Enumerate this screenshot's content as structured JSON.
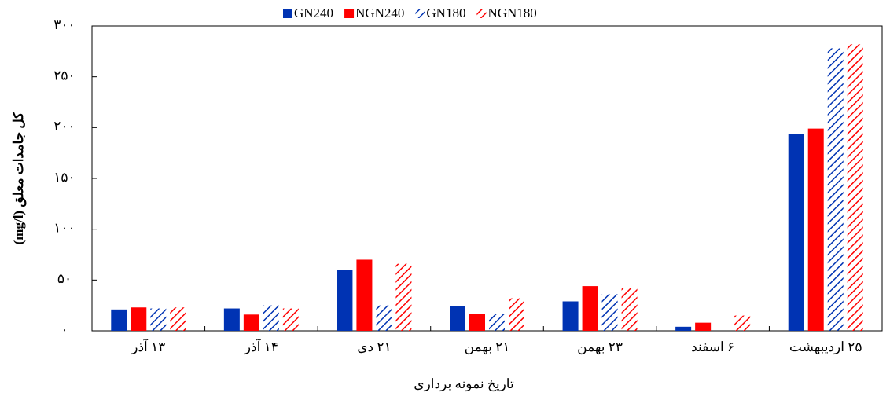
{
  "chart_data": {
    "type": "bar",
    "x_label": "تاریخ نمونه برداری",
    "y_label": "کل جامدات معلق (mg/l)",
    "categories": [
      "۱۳ آذر",
      "۱۴ آذر",
      "۲۱ دی",
      "۲۱ بهمن",
      "۲۳ بهمن",
      "۶ اسفند",
      "۲۵ اردیبهشت"
    ],
    "series": [
      {
        "name": "GN240",
        "color": "#0033b3",
        "pattern": "solid",
        "values": [
          21,
          22,
          60,
          24,
          29,
          4,
          194
        ]
      },
      {
        "name": "NGN240",
        "color": "#ff0000",
        "pattern": "solid",
        "values": [
          23,
          16,
          70,
          17,
          44,
          8,
          199
        ]
      },
      {
        "name": "GN180",
        "color": "#0033b3",
        "pattern": "hatched",
        "values": [
          22,
          25,
          25,
          17,
          36,
          null,
          278
        ]
      },
      {
        "name": "NGN180",
        "color": "#ff0000",
        "pattern": "hatched",
        "values": [
          23,
          22,
          66,
          32,
          42,
          15,
          282
        ]
      }
    ],
    "ylim": [
      0,
      300
    ],
    "yticks": [
      {
        "value": 0,
        "label": "۰"
      },
      {
        "value": 50,
        "label": "۵۰"
      },
      {
        "value": 100,
        "label": "۱۰۰"
      },
      {
        "value": 150,
        "label": "۱۵۰"
      },
      {
        "value": 200,
        "label": "۲۰۰"
      },
      {
        "value": 250,
        "label": "۲۵۰"
      },
      {
        "value": 300,
        "label": "۳۰۰"
      }
    ],
    "legend": "top"
  }
}
